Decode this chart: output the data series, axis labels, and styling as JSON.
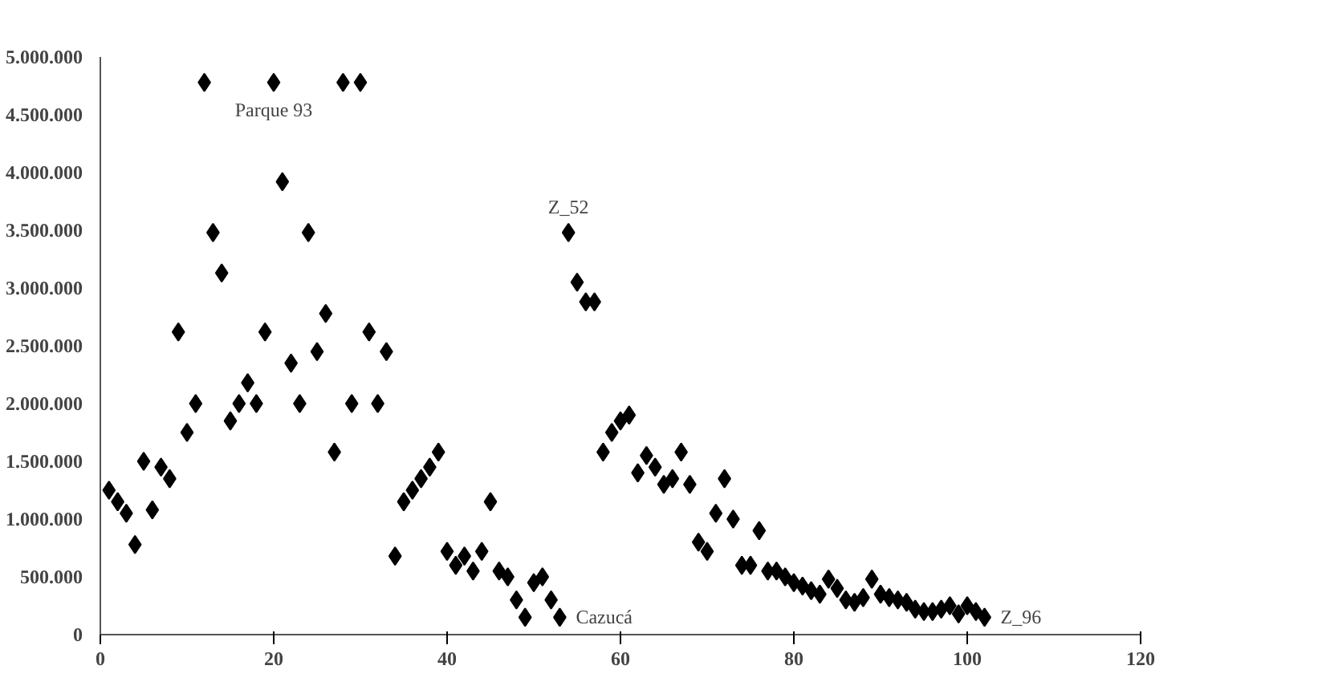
{
  "chart_data": {
    "type": "scatter",
    "marker": "diamond",
    "grid": false,
    "xlim": [
      0,
      120
    ],
    "xticks": [
      0,
      20,
      40,
      60,
      80,
      100,
      120
    ],
    "ylim": [
      0,
      5000000
    ],
    "yticks": [
      {
        "value": 0,
        "label": "0"
      },
      {
        "value": 500000,
        "label": "500.000"
      },
      {
        "value": 1000000,
        "label": "1.000.000"
      },
      {
        "value": 1500000,
        "label": "1.500.000"
      },
      {
        "value": 2000000,
        "label": "2.000.000"
      },
      {
        "value": 2500000,
        "label": "2.500.000"
      },
      {
        "value": 3000000,
        "label": "3.000.000"
      },
      {
        "value": 3500000,
        "label": "3.500.000"
      },
      {
        "value": 4000000,
        "label": "4.000.000"
      },
      {
        "value": 4500000,
        "label": "4.500.000"
      },
      {
        "value": 5000000,
        "label": "5.000.000"
      }
    ],
    "series": [
      {
        "color": "#000000",
        "x": [
          1,
          2,
          3,
          4,
          5,
          6,
          7,
          8,
          9,
          10,
          11,
          12,
          13,
          14,
          15,
          16,
          17,
          18,
          19,
          20,
          21,
          22,
          23,
          24,
          25,
          26,
          27,
          28,
          29,
          30,
          31,
          32,
          33,
          34,
          35,
          36,
          37,
          38,
          39,
          40,
          41,
          42,
          43,
          44,
          45,
          46,
          47,
          48,
          49,
          50,
          51,
          52,
          53,
          54,
          55,
          56,
          57,
          58,
          59,
          60,
          61,
          62,
          63,
          64,
          65,
          66,
          67,
          68,
          69,
          70,
          71,
          72,
          73,
          74,
          75,
          76,
          77,
          78,
          79,
          80,
          81,
          82,
          83,
          84,
          85,
          86,
          87,
          88,
          89,
          90,
          91,
          92,
          93,
          94,
          95,
          96,
          97,
          98,
          99,
          100,
          101,
          102
        ],
        "values": [
          1250000,
          1150000,
          1050000,
          780000,
          1500000,
          1080000,
          1450000,
          1350000,
          2620000,
          1750000,
          2000000,
          4780000,
          3480000,
          3130000,
          1850000,
          2000000,
          2180000,
          2000000,
          2620000,
          4780000,
          3920000,
          2350000,
          2000000,
          3480000,
          2450000,
          2780000,
          1580000,
          4780000,
          2000000,
          4780000,
          2620000,
          2000000,
          2450000,
          680000,
          1150000,
          1250000,
          1350000,
          1450000,
          1580000,
          720000,
          600000,
          680000,
          550000,
          720000,
          1150000,
          550000,
          500000,
          300000,
          150000,
          450000,
          500000,
          300000,
          150000,
          3480000,
          3050000,
          2880000,
          2880000,
          1580000,
          1750000,
          1850000,
          1900000,
          1400000,
          1550000,
          1450000,
          1300000,
          1350000,
          1580000,
          1300000,
          800000,
          720000,
          1050000,
          1350000,
          1000000,
          600000,
          600000,
          900000,
          550000,
          550000,
          500000,
          450000,
          420000,
          380000,
          350000,
          480000,
          400000,
          300000,
          280000,
          320000,
          480000,
          350000,
          320000,
          300000,
          280000,
          220000,
          200000,
          200000,
          220000,
          250000,
          180000,
          250000,
          200000,
          150000
        ]
      }
    ],
    "annotations": [
      {
        "text": "Parque 93",
        "x": 20,
        "y": 4780000
      },
      {
        "text": "Z_52",
        "x": 54,
        "y": 3480000
      },
      {
        "text": "Cazucá",
        "x": 53,
        "y": 150000
      },
      {
        "text": "Z_96",
        "x": 102,
        "y": 150000
      }
    ]
  }
}
